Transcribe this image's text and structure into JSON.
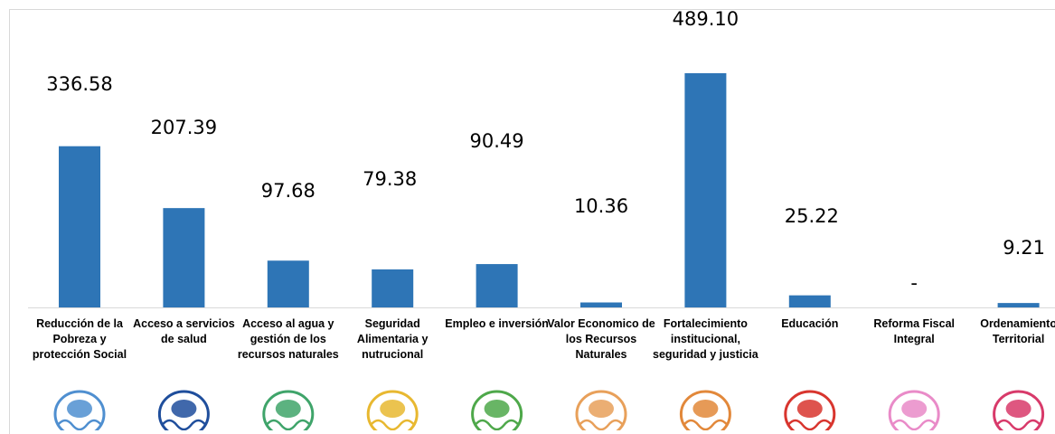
{
  "chart_data": {
    "type": "bar",
    "categories": [
      "Reducción de la Pobreza y protección Social",
      "Acceso a servicios de salud",
      "Acceso al agua y gestión de los recursos naturales",
      "Seguridad Alimentaria y nutrucional",
      "Empleo e inversión",
      "Valor Economico de los Recursos Naturales",
      "Fortalecimiento institucional, seguridad y justicia",
      "Educación",
      "Reforma Fiscal Integral",
      "Ordenamiento Territorial"
    ],
    "values": [
      336.58,
      207.39,
      97.68,
      79.38,
      90.49,
      10.36,
      489.1,
      25.22,
      0,
      9.21
    ],
    "data_labels": [
      "336.58",
      "207.39",
      "97.68",
      "79.38",
      "90.49",
      "10.36",
      "489.10",
      "25.22",
      "-",
      "9.21"
    ],
    "ylim": [
      0,
      500
    ],
    "grid": false,
    "bar_color": "#2E75B6",
    "title": "",
    "xlabel": "",
    "ylabel": ""
  },
  "icons": [
    {
      "name": "poverty-emblem-icon",
      "color": "#4F8FD0"
    },
    {
      "name": "health-emblem-icon",
      "color": "#1F4E9C"
    },
    {
      "name": "water-emblem-icon",
      "color": "#3FA46A"
    },
    {
      "name": "food-security-emblem-icon",
      "color": "#E8B830"
    },
    {
      "name": "employment-emblem-icon",
      "color": "#4EA84A"
    },
    {
      "name": "natural-resources-emblem-icon",
      "color": "#E8A05A"
    },
    {
      "name": "institutional-emblem-icon",
      "color": "#E2883A"
    },
    {
      "name": "education-emblem-icon",
      "color": "#D8352E"
    },
    {
      "name": "fiscal-reform-emblem-icon",
      "color": "#E98BC8"
    },
    {
      "name": "land-use-emblem-icon",
      "color": "#D83A6A"
    }
  ]
}
